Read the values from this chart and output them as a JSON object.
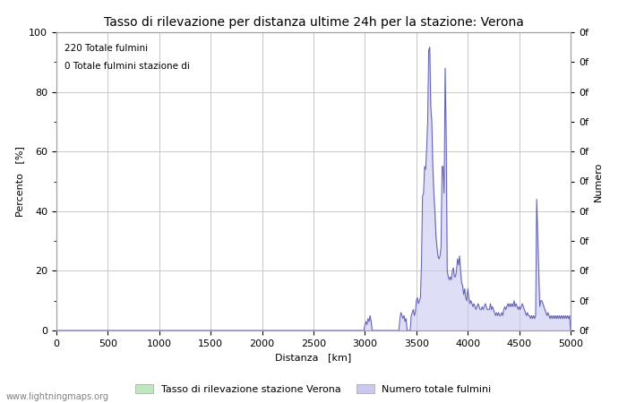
{
  "title": "Tasso di rilevazione per distanza ultime 24h per la stazione: Verona",
  "xlabel": "Distanza   [km]",
  "ylabel_left": "Percento   [%]",
  "ylabel_right": "Numero",
  "annotation_line1": "220 Totale fulmini",
  "annotation_line2": "0 Totale fulmini stazione di",
  "legend_label1": "Tasso di rilevazione stazione Verona",
  "legend_label2": "Numero totale fulmini",
  "watermark": "www.lightningmaps.org",
  "xlim": [
    0,
    5000
  ],
  "ylim": [
    0,
    100
  ],
  "xticks": [
    0,
    500,
    1000,
    1500,
    2000,
    2500,
    3000,
    3500,
    4000,
    4500,
    5000
  ],
  "yticks_left": [
    0,
    20,
    40,
    60,
    80,
    100
  ],
  "yticks_right_major": [
    0,
    10,
    20,
    30,
    40,
    50,
    60,
    70,
    80,
    90,
    100
  ],
  "right_major_label": "0f",
  "fill_color": "#c8c8f0",
  "line_color": "#6060b0",
  "fill_alpha": 0.6,
  "background_color": "#ffffff",
  "grid_color": "#c8c8c8",
  "title_fontsize": 10,
  "label_fontsize": 8,
  "tick_fontsize": 8,
  "legend_color1": "#c0e8c0",
  "legend_color2": "#c8c8f0",
  "percent_data_raw": {
    "2960": 0,
    "2970": 0,
    "2980": 0,
    "2990": 0,
    "3000": 2,
    "3010": 3,
    "3020": 2,
    "3030": 4,
    "3040": 3,
    "3050": 5,
    "3060": 3,
    "3070": 0,
    "3080": 0,
    "3090": 0,
    "3100": 0,
    "3110": 0,
    "3120": 0,
    "3130": 0,
    "3140": 0,
    "3150": 0,
    "3160": 0,
    "3170": 0,
    "3180": 0,
    "3190": 0,
    "3200": 0,
    "3210": 0,
    "3220": 0,
    "3230": 0,
    "3240": 0,
    "3250": 0,
    "3260": 0,
    "3270": 0,
    "3280": 0,
    "3290": 0,
    "3300": 0,
    "3310": 0,
    "3320": 0,
    "3330": 0,
    "3340": 4,
    "3350": 6,
    "3360": 5,
    "3370": 4,
    "3380": 5,
    "3390": 3,
    "3400": 4,
    "3410": 0,
    "3420": 0,
    "3430": 0,
    "3440": 0,
    "3450": 5,
    "3460": 6,
    "3470": 7,
    "3480": 5,
    "3490": 6,
    "3500": 10,
    "3510": 11,
    "3520": 9,
    "3530": 10,
    "3540": 11,
    "3550": 23,
    "3560": 45,
    "3570": 46,
    "3580": 55,
    "3590": 54,
    "3600": 61,
    "3610": 70,
    "3620": 94,
    "3630": 95,
    "3640": 75,
    "3650": 70,
    "3660": 55,
    "3670": 46,
    "3680": 40,
    "3690": 32,
    "3700": 28,
    "3710": 25,
    "3720": 24,
    "3730": 25,
    "3740": 28,
    "3750": 55,
    "3760": 55,
    "3770": 46,
    "3780": 88,
    "3790": 65,
    "3800": 20,
    "3810": 18,
    "3820": 17,
    "3830": 18,
    "3840": 17,
    "3850": 20,
    "3860": 21,
    "3870": 18,
    "3880": 18,
    "3890": 20,
    "3900": 24,
    "3910": 22,
    "3920": 25,
    "3930": 20,
    "3940": 16,
    "3950": 15,
    "3960": 12,
    "3970": 14,
    "3980": 11,
    "3990": 10,
    "4000": 14,
    "4010": 11,
    "4020": 9,
    "4030": 10,
    "4040": 9,
    "4050": 8,
    "4060": 9,
    "4070": 8,
    "4080": 7,
    "4090": 8,
    "4100": 9,
    "4110": 8,
    "4120": 7,
    "4130": 7,
    "4140": 8,
    "4150": 7,
    "4160": 8,
    "4170": 9,
    "4180": 8,
    "4190": 7,
    "4200": 7,
    "4210": 7,
    "4220": 9,
    "4230": 7,
    "4240": 8,
    "4250": 7,
    "4260": 6,
    "4270": 5,
    "4280": 6,
    "4290": 5,
    "4300": 6,
    "4310": 5,
    "4320": 5,
    "4330": 6,
    "4340": 5,
    "4350": 7,
    "4360": 8,
    "4370": 7,
    "4380": 8,
    "4390": 9,
    "4400": 8,
    "4410": 9,
    "4420": 8,
    "4430": 9,
    "4440": 8,
    "4450": 10,
    "4460": 8,
    "4470": 9,
    "4480": 8,
    "4490": 7,
    "4500": 8,
    "4510": 7,
    "4520": 8,
    "4530": 9,
    "4540": 8,
    "4550": 7,
    "4560": 6,
    "4570": 5,
    "4580": 6,
    "4590": 5,
    "4600": 5,
    "4610": 4,
    "4620": 5,
    "4630": 4,
    "4640": 5,
    "4650": 4,
    "4660": 5,
    "4670": 44,
    "4680": 32,
    "4690": 20,
    "4700": 8,
    "4710": 10,
    "4720": 10,
    "4730": 9,
    "4740": 8,
    "4750": 7,
    "4760": 6,
    "4770": 5,
    "4780": 6,
    "4790": 5,
    "4800": 4,
    "4810": 5,
    "4820": 4,
    "4830": 5,
    "4840": 4,
    "4850": 5,
    "4860": 4,
    "4870": 5,
    "4880": 4,
    "4890": 5,
    "4900": 4,
    "4910": 5,
    "4920": 4,
    "4930": 5,
    "4940": 4,
    "4950": 5,
    "4960": 4,
    "4970": 5,
    "4980": 4,
    "4990": 5,
    "5000": 0
  }
}
